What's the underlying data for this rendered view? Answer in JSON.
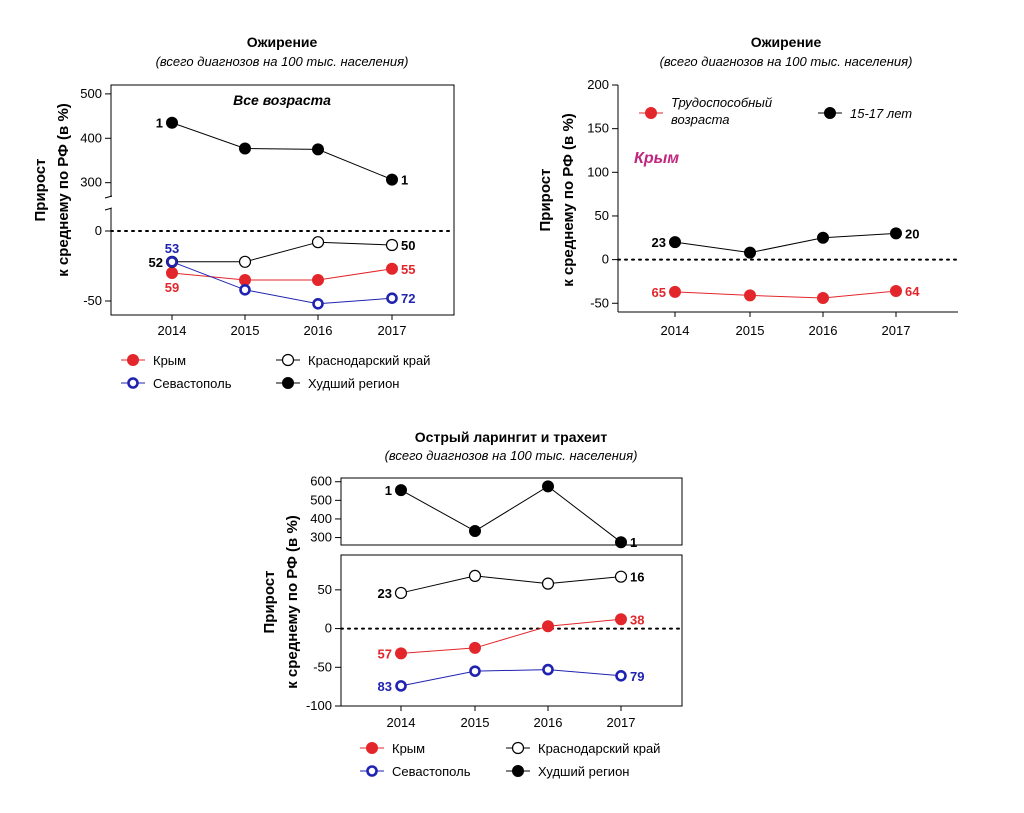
{
  "chart_data": [
    {
      "type": "line",
      "title": "Ожирение",
      "subtitle": "(всего диагнозов на 100 тыс. населения)",
      "ylabel": "Прирост к среднему по РФ (в %)",
      "ylabel_lines": [
        "Прирост",
        "к среднему по РФ (в %)"
      ],
      "annotation": "Все возраста",
      "x": [
        "2014",
        "2015",
        "2016",
        "2017"
      ],
      "y_segments": [
        {
          "ylim": [
            -60,
            15
          ],
          "ticks": [
            -50,
            0
          ]
        },
        {
          "ylim": [
            270,
            520
          ],
          "ticks": [
            300,
            400,
            500
          ]
        }
      ],
      "zero_line": true,
      "series": [
        {
          "name": "Крым",
          "color": "#e3262b",
          "marker": "filled",
          "values": [
            -30,
            -35,
            -35,
            -27
          ],
          "labels": {
            "0": {
              "text": "59",
              "pos": "below"
            },
            "3": {
              "text": "55",
              "pos": "right"
            }
          }
        },
        {
          "name": "Краснодарский край",
          "color": "#000000",
          "marker": "open",
          "values": [
            -22,
            -22,
            -8,
            -10
          ],
          "labels": {
            "0": {
              "text": "52",
              "pos": "left"
            },
            "3": {
              "text": "50",
              "pos": "right"
            }
          }
        },
        {
          "name": "Севастополь",
          "color": "#1f23b0",
          "marker": "ring",
          "values": [
            -22,
            -42,
            -52,
            -48
          ],
          "labels": {
            "0": {
              "text": "53",
              "pos": "above"
            },
            "3": {
              "text": "72",
              "pos": "right"
            }
          }
        },
        {
          "name": "Худший регион",
          "color": "#000000",
          "marker": "filled",
          "values": [
            435,
            377,
            375,
            307
          ],
          "labels": {
            "0": {
              "text": "1",
              "pos": "left"
            },
            "3": {
              "text": "1",
              "pos": "right"
            }
          }
        }
      ],
      "legend": [
        {
          "name": "Крым",
          "color": "#e3262b",
          "marker": "filled"
        },
        {
          "name": "Краснодарский край",
          "color": "#000000",
          "marker": "open"
        },
        {
          "name": "Севастополь",
          "color": "#1f23b0",
          "marker": "ring"
        },
        {
          "name": "Худший регион",
          "color": "#000000",
          "marker": "filled"
        }
      ]
    },
    {
      "type": "line",
      "title": "Ожирение",
      "subtitle": "(всего диагнозов на 100 тыс. населения)",
      "ylabel": "Прирост к среднему по РФ (в %)",
      "ylabel_lines": [
        "Прирост",
        "к среднему по РФ (в %)"
      ],
      "annotation": "Крым",
      "annotation_color": "#c0267e",
      "x": [
        "2014",
        "2015",
        "2016",
        "2017"
      ],
      "ylim": [
        -60,
        200
      ],
      "yticks": [
        -50,
        0,
        50,
        100,
        150,
        200
      ],
      "zero_line": true,
      "series": [
        {
          "name": "Трудоспособный возраста",
          "color": "#e3262b",
          "marker": "filled",
          "values": [
            -37,
            -41,
            -44,
            -36
          ],
          "labels": {
            "0": {
              "text": "65",
              "pos": "left"
            },
            "3": {
              "text": "64",
              "pos": "right"
            }
          }
        },
        {
          "name": "15-17 лет",
          "color": "#000000",
          "marker": "filled",
          "values": [
            20,
            8,
            25,
            30
          ],
          "labels": {
            "0": {
              "text": "23",
              "pos": "left"
            },
            "3": {
              "text": "20",
              "pos": "right"
            }
          }
        }
      ],
      "legend": [
        {
          "name": "Трудоспособный",
          "name2": "возраста",
          "color": "#e3262b",
          "marker": "filled"
        },
        {
          "name": "15-17 лет",
          "color": "#000000",
          "marker": "filled"
        }
      ]
    },
    {
      "type": "line",
      "title": "Острый ларингит и трахеит",
      "subtitle": "(всего диагнозов на 100 тыс. населения)",
      "ylabel": "Прирост к среднему по РФ (в %)",
      "ylabel_lines": [
        "Прирост",
        "к среднему по РФ (в %)"
      ],
      "x": [
        "2014",
        "2015",
        "2016",
        "2017"
      ],
      "y_segments": [
        {
          "ylim": [
            -100,
            95
          ],
          "ticks": [
            -100,
            -50,
            0,
            50
          ]
        },
        {
          "ylim": [
            260,
            620
          ],
          "ticks": [
            300,
            400,
            500,
            600
          ]
        }
      ],
      "zero_line": true,
      "series": [
        {
          "name": "Крым",
          "color": "#e3262b",
          "marker": "filled",
          "values": [
            -32,
            -25,
            3,
            12
          ],
          "labels": {
            "0": {
              "text": "57",
              "pos": "left"
            },
            "3": {
              "text": "38",
              "pos": "right"
            }
          }
        },
        {
          "name": "Краснодарский край",
          "color": "#000000",
          "marker": "open",
          "values": [
            46,
            68,
            58,
            67
          ],
          "labels": {
            "0": {
              "text": "23",
              "pos": "left"
            },
            "3": {
              "text": "16",
              "pos": "right"
            }
          }
        },
        {
          "name": "Севастополь",
          "color": "#1f23b0",
          "marker": "ring",
          "values": [
            -74,
            -55,
            -53,
            -61
          ],
          "labels": {
            "0": {
              "text": "83",
              "pos": "left"
            },
            "3": {
              "text": "79",
              "pos": "right"
            }
          }
        },
        {
          "name": "Худший регион",
          "color": "#000000",
          "marker": "filled",
          "values": [
            555,
            335,
            575,
            275
          ],
          "labels": {
            "0": {
              "text": "1",
              "pos": "left"
            },
            "3": {
              "text": "1",
              "pos": "right"
            }
          }
        }
      ],
      "legend": [
        {
          "name": "Крым",
          "color": "#e3262b",
          "marker": "filled"
        },
        {
          "name": "Краснодарский край",
          "color": "#000000",
          "marker": "open"
        },
        {
          "name": "Севастополь",
          "color": "#1f23b0",
          "marker": "ring"
        },
        {
          "name": "Худший регион",
          "color": "#000000",
          "marker": "filled"
        }
      ]
    }
  ]
}
